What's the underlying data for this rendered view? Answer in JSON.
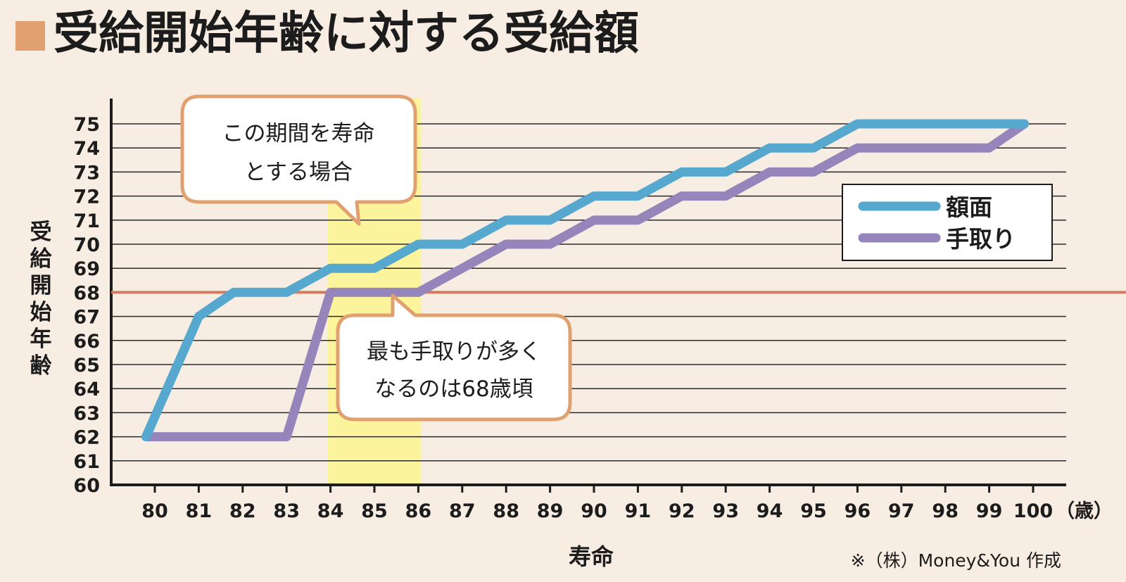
{
  "page": {
    "title": "受給開始年齢に対する受給額",
    "credit": "※（株）Money&You 作成"
  },
  "chart_data": {
    "type": "line",
    "title": "受給開始年齢に対する受給額",
    "xlabel": "寿命",
    "ylabel": "受給開始年齢",
    "x_unit": "（歳）",
    "x": [
      80,
      81,
      82,
      83,
      84,
      85,
      86,
      87,
      88,
      89,
      90,
      91,
      92,
      93,
      94,
      95,
      96,
      97,
      98,
      99,
      100
    ],
    "x_tick_labels": [
      "80",
      "81",
      "82",
      "83",
      "84",
      "85",
      "86",
      "87",
      "88",
      "89",
      "90",
      "91",
      "92",
      "93",
      "94",
      "95",
      "96",
      "97",
      "98",
      "99",
      "100"
    ],
    "y_tick_labels": [
      "60",
      "61",
      "62",
      "63",
      "64",
      "65",
      "66",
      "67",
      "68",
      "69",
      "70",
      "71",
      "72",
      "73",
      "74",
      "75"
    ],
    "xlim": [
      80,
      100
    ],
    "ylim": [
      60,
      75
    ],
    "grid": true,
    "legend_position": "right",
    "series": [
      {
        "name": "額面",
        "color": "#57a8cf",
        "points": [
          [
            79.8,
            62
          ],
          [
            81,
            67
          ],
          [
            81.8,
            68
          ],
          [
            83,
            68
          ],
          [
            84,
            69
          ],
          [
            85,
            69
          ],
          [
            86,
            70
          ],
          [
            87,
            70
          ],
          [
            88,
            71
          ],
          [
            89,
            71
          ],
          [
            90,
            72
          ],
          [
            91,
            72
          ],
          [
            92,
            73
          ],
          [
            93,
            73
          ],
          [
            94,
            74
          ],
          [
            95,
            74
          ],
          [
            96,
            75
          ],
          [
            97,
            75
          ],
          [
            98,
            75
          ],
          [
            99,
            75
          ],
          [
            99.8,
            75
          ]
        ]
      },
      {
        "name": "手取り",
        "color": "#9585bb",
        "points": [
          [
            79.8,
            62
          ],
          [
            81,
            62
          ],
          [
            82,
            62
          ],
          [
            83,
            62
          ],
          [
            84,
            68
          ],
          [
            85,
            68
          ],
          [
            86,
            68
          ],
          [
            87,
            69
          ],
          [
            88,
            70
          ],
          [
            89,
            70
          ],
          [
            90,
            71
          ],
          [
            91,
            71
          ],
          [
            92,
            72
          ],
          [
            93,
            72
          ],
          [
            94,
            73
          ],
          [
            95,
            73
          ],
          [
            96,
            74
          ],
          [
            97,
            74
          ],
          [
            98,
            74
          ],
          [
            99,
            74
          ],
          [
            99.8,
            75
          ]
        ]
      }
    ],
    "reference_line": {
      "y": 68,
      "color": "#d47a5e",
      "tick_color": "#d47a5e"
    },
    "highlight_band": {
      "x_start": 84,
      "x_end": 86,
      "color": "#fbf49c"
    },
    "annotations": [
      {
        "name": "period-callout",
        "lines": [
          "この期間を寿命",
          "とする場合"
        ]
      },
      {
        "name": "peak-callout",
        "lines": [
          "最も手取りが多く",
          "なるのは68歳頃"
        ]
      }
    ]
  }
}
